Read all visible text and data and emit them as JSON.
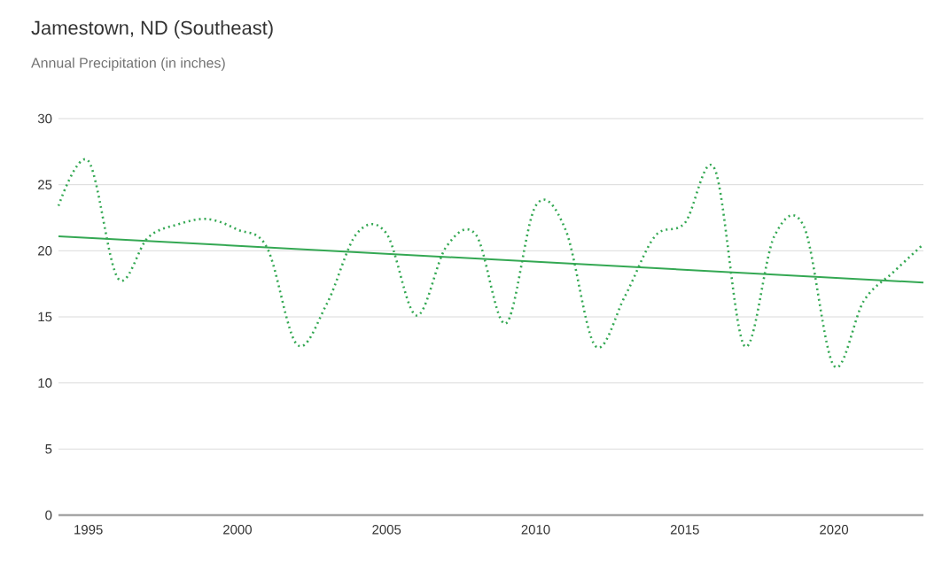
{
  "chart_data": {
    "type": "line",
    "title": "Jamestown, ND (Southeast)",
    "subtitle": "Annual Precipitation (in inches)",
    "xlim": [
      1994,
      2023
    ],
    "xticks": [
      1995,
      2000,
      2005,
      2010,
      2015,
      2020
    ],
    "ylim": [
      0,
      30
    ],
    "yticks": [
      0,
      5,
      10,
      15,
      20,
      25,
      30
    ],
    "grid": "y",
    "marker": "none",
    "series": [
      {
        "color": "#34a853",
        "line_style": "dotted",
        "x": [
          1994,
          1995,
          1996,
          1997,
          1998,
          1999,
          2000,
          2001,
          2002,
          2003,
          2004,
          2005,
          2006,
          2007,
          2008,
          2009,
          2010,
          2011,
          2012,
          2013,
          2014,
          2015,
          2016,
          2017,
          2018,
          2019,
          2020,
          2021,
          2022,
          2023
        ],
        "values": [
          23.4,
          26.8,
          17.9,
          21.0,
          22.0,
          22.4,
          21.6,
          20.2,
          12.9,
          16.0,
          21.3,
          21.3,
          15.1,
          20.3,
          21.2,
          14.5,
          23.4,
          21.6,
          12.8,
          16.6,
          21.1,
          22.1,
          26.2,
          12.8,
          21.1,
          21.8,
          11.3,
          16.2,
          18.4,
          20.5
        ]
      },
      {
        "color": "#34a853",
        "line_style": "solid",
        "x": [
          1994,
          2023
        ],
        "values": [
          21.1,
          17.6
        ]
      }
    ]
  }
}
